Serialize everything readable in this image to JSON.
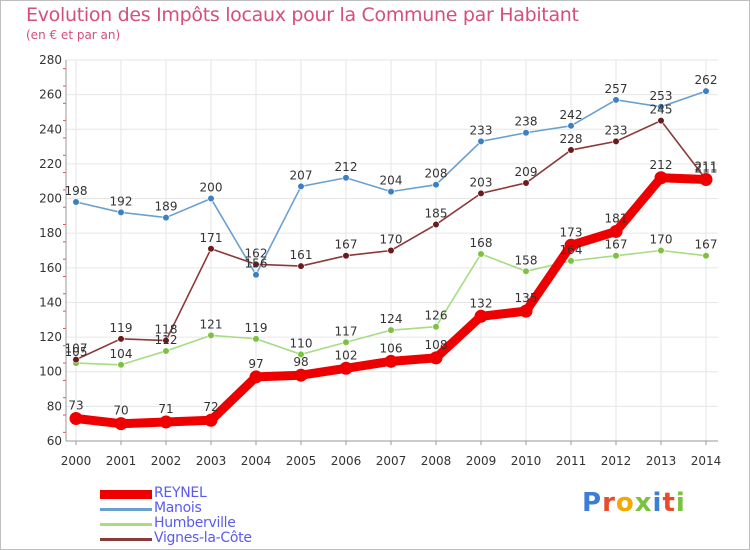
{
  "header": {
    "title": "Evolution des Impôts locaux pour la Commune par Habitant",
    "subtitle": "(en € et par an)"
  },
  "logo": {
    "letters": [
      "P",
      "r",
      "o",
      "x",
      "i",
      "t",
      "i"
    ],
    "colors": [
      "#3a7fd5",
      "#e94c2a",
      "#f2a900",
      "#7cc142",
      "#3a7fd5",
      "#e94c2a",
      "#7cc142"
    ]
  },
  "chart_data": {
    "type": "line",
    "title": "Evolution des Impôts locaux pour la Commune par Habitant",
    "subtitle": "(en € et par an)",
    "xlabel": "",
    "ylabel": "",
    "ylim": [
      60,
      280
    ],
    "yticks": [
      60,
      80,
      100,
      120,
      140,
      160,
      180,
      200,
      220,
      240,
      260,
      280
    ],
    "grid": true,
    "legend_position": "bottom-left",
    "x": [
      "2000",
      "2001",
      "2002",
      "2003",
      "2004",
      "2005",
      "2006",
      "2007",
      "2008",
      "2009",
      "2010",
      "2011",
      "2012",
      "2013",
      "2014"
    ],
    "series": [
      {
        "name": "REYNEL",
        "color": "#ee0000",
        "thick": true,
        "values": [
          73,
          70,
          71,
          72,
          97,
          98,
          102,
          106,
          108,
          132,
          135,
          173,
          181,
          212,
          211
        ],
        "labels": [
          "73",
          "70",
          "71",
          "72",
          "97",
          "98",
          "102",
          "106",
          "108",
          "132",
          "135",
          "173",
          "181",
          "212",
          "211"
        ]
      },
      {
        "name": "Manois",
        "color": "#6aa0d0",
        "dot": "#3d7fc4",
        "thick": false,
        "values": [
          198,
          192,
          189,
          200,
          156,
          207,
          212,
          204,
          208,
          233,
          238,
          242,
          257,
          253,
          262
        ],
        "labels": [
          "198",
          "192",
          "189",
          "200",
          "156",
          "207",
          "212",
          "204",
          "208",
          "233",
          "238",
          "242",
          "257",
          "253",
          "262"
        ]
      },
      {
        "name": "Humberville",
        "color": "#a6dc82",
        "dot": "#7cc142",
        "thick": false,
        "values": [
          105,
          104,
          112,
          121,
          119,
          110,
          117,
          124,
          126,
          168,
          158,
          164,
          167,
          170,
          167
        ],
        "labels": [
          "105",
          "104",
          "112",
          "121",
          "119",
          "110",
          "117",
          "124",
          "126",
          "168",
          "158",
          "164",
          "167",
          "170",
          "167"
        ]
      },
      {
        "name": "Vignes-la-Côte",
        "color": "#8b3a3a",
        "dot": "#6b1b1b",
        "thick": false,
        "values": [
          107,
          119,
          118,
          171,
          162,
          161,
          167,
          170,
          185,
          203,
          209,
          228,
          233,
          245,
          211
        ],
        "labels": [
          "107",
          "119",
          "118",
          "171",
          "162",
          "161",
          "167",
          "170",
          "185",
          "203",
          "209",
          "228",
          "233",
          "245",
          "211"
        ]
      }
    ]
  }
}
